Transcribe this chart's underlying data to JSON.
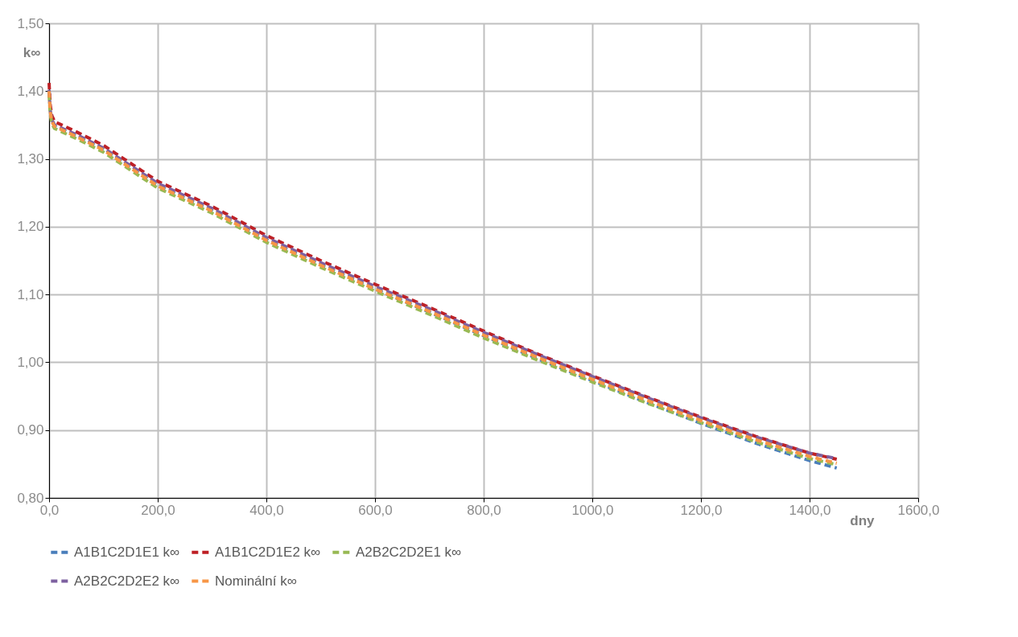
{
  "chart_data": {
    "type": "line",
    "xlabel": "dny",
    "ylabel": "k∞",
    "xlim": [
      0,
      1600
    ],
    "ylim": [
      0.8,
      1.5
    ],
    "xticks": [
      {
        "value": 0,
        "label": "0,0"
      },
      {
        "value": 200,
        "label": "200,0"
      },
      {
        "value": 400,
        "label": "400,0"
      },
      {
        "value": 600,
        "label": "600,0"
      },
      {
        "value": 800,
        "label": "800,0"
      },
      {
        "value": 1000,
        "label": "1000,0"
      },
      {
        "value": 1200,
        "label": "1200,0"
      },
      {
        "value": 1400,
        "label": "1400,0"
      },
      {
        "value": 1600,
        "label": "1600,0"
      }
    ],
    "yticks": [
      {
        "value": 0.8,
        "label": "0,80"
      },
      {
        "value": 0.9,
        "label": "0,90"
      },
      {
        "value": 1.0,
        "label": "1,00"
      },
      {
        "value": 1.1,
        "label": "1,10"
      },
      {
        "value": 1.2,
        "label": "1,20"
      },
      {
        "value": 1.3,
        "label": "1,30"
      },
      {
        "value": 1.4,
        "label": "1,40"
      },
      {
        "value": 1.5,
        "label": "1,50"
      }
    ],
    "x": [
      0,
      2,
      5,
      10,
      50,
      100,
      200,
      300,
      400,
      500,
      600,
      700,
      800,
      900,
      1000,
      1100,
      1200,
      1300,
      1400,
      1450
    ],
    "series": [
      {
        "name": "A1B1C2D1E1 k∞",
        "color": "#4a7ebb",
        "values": [
          1.4,
          1.372,
          1.357,
          1.349,
          1.334,
          1.314,
          1.261,
          1.224,
          1.181,
          1.144,
          1.108,
          1.074,
          1.039,
          1.005,
          0.973,
          0.941,
          0.91,
          0.881,
          0.855,
          0.844
        ]
      },
      {
        "name": "A1B1C2D1E2 k∞",
        "color": "#be2025",
        "values": [
          1.412,
          1.38,
          1.364,
          1.355,
          1.34,
          1.32,
          1.267,
          1.23,
          1.187,
          1.15,
          1.115,
          1.081,
          1.046,
          1.012,
          0.98,
          0.949,
          0.919,
          0.891,
          0.866,
          0.857
        ]
      },
      {
        "name": "A2B2C2D2E1 k∞",
        "color": "#98b954",
        "values": [
          1.395,
          1.367,
          1.352,
          1.345,
          1.33,
          1.31,
          1.257,
          1.22,
          1.177,
          1.14,
          1.105,
          1.071,
          1.036,
          1.003,
          0.971,
          0.94,
          0.911,
          0.883,
          0.858,
          0.849
        ]
      },
      {
        "name": "A2B2C2D2E2 k∞",
        "color": "#7d60a0",
        "values": [
          1.402,
          1.373,
          1.358,
          1.35,
          1.336,
          1.316,
          1.264,
          1.227,
          1.184,
          1.147,
          1.112,
          1.079,
          1.044,
          1.011,
          0.979,
          0.948,
          0.918,
          0.89,
          0.866,
          0.858
        ]
      },
      {
        "name": "Nominální k∞",
        "color": "#f79646",
        "values": [
          1.4,
          1.37,
          1.355,
          1.348,
          1.333,
          1.313,
          1.26,
          1.223,
          1.18,
          1.143,
          1.108,
          1.075,
          1.04,
          1.007,
          0.975,
          0.944,
          0.914,
          0.886,
          0.861,
          0.851
        ]
      }
    ],
    "grid": true,
    "legend": "bottom",
    "line_style": "dashed",
    "marker": "none"
  }
}
